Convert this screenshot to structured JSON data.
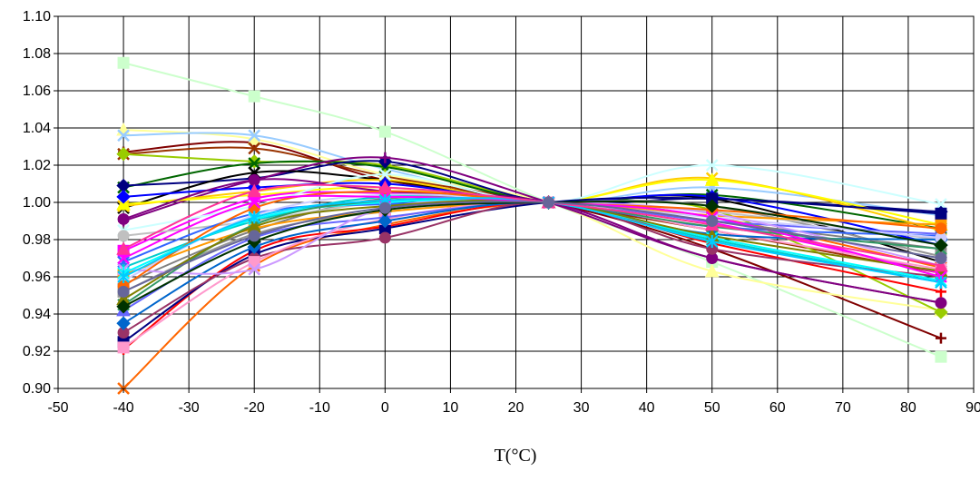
{
  "chart_data": {
    "type": "line",
    "title": "",
    "xlabel": "T(°C)",
    "ylabel": "",
    "xlim": [
      -50,
      90
    ],
    "ylim": [
      0.9,
      1.1
    ],
    "xticks": [
      "-50",
      "-40",
      "-30",
      "-20",
      "-10",
      "0",
      "10",
      "20",
      "30",
      "40",
      "50",
      "60",
      "70",
      "80",
      "90"
    ],
    "yticks": [
      "0.90",
      "0.92",
      "0.94",
      "0.96",
      "0.98",
      "1.00",
      "1.02",
      "1.04",
      "1.06",
      "1.08",
      "1.10"
    ],
    "grid": true,
    "legend": "none",
    "x": [
      -40,
      -20,
      0,
      25,
      50,
      85
    ],
    "series": [
      {
        "color": "#ccffcc",
        "marker": "square",
        "values": [
          1.075,
          1.057,
          1.038,
          1.0,
          0.968,
          0.917
        ]
      },
      {
        "color": "#ff6600",
        "marker": "x",
        "values": [
          0.9,
          0.966,
          0.988,
          1.0,
          0.992,
          0.965
        ]
      },
      {
        "color": "#800000",
        "marker": "plus",
        "values": [
          1.027,
          1.032,
          1.012,
          1.0,
          0.975,
          0.927
        ]
      },
      {
        "color": "#ffff99",
        "marker": "triangle",
        "values": [
          1.039,
          1.034,
          1.015,
          1.0,
          0.963,
          0.942
        ]
      },
      {
        "color": "#99ccff",
        "marker": "x",
        "values": [
          1.036,
          1.036,
          1.018,
          1.0,
          1.008,
          0.993
        ]
      },
      {
        "color": "#993300",
        "marker": "x",
        "values": [
          1.026,
          1.029,
          1.014,
          1.0,
          0.985,
          0.962
        ]
      },
      {
        "color": "#99cc00",
        "marker": "diamond",
        "values": [
          1.026,
          1.022,
          1.02,
          1.0,
          0.996,
          0.941
        ]
      },
      {
        "color": "#006600",
        "marker": "x",
        "values": [
          1.008,
          1.021,
          1.019,
          1.0,
          1.004,
          0.986
        ]
      },
      {
        "color": "#000080",
        "marker": "diamond",
        "values": [
          1.009,
          1.013,
          1.022,
          1.0,
          1.002,
          0.995
        ]
      },
      {
        "color": "#800080",
        "marker": "plus",
        "values": [
          0.99,
          1.012,
          1.024,
          1.0,
          0.97,
          0.946
        ]
      },
      {
        "color": "#000000",
        "marker": "x",
        "values": [
          0.997,
          1.016,
          1.012,
          1.0,
          1.002,
          0.968
        ]
      },
      {
        "color": "#ffcc00",
        "marker": "x",
        "values": [
          0.998,
          1.006,
          1.012,
          1.0,
          1.013,
          0.985
        ]
      },
      {
        "color": "#ffff00",
        "marker": "triangle",
        "values": [
          0.999,
          1.004,
          1.008,
          1.0,
          1.012,
          0.988
        ]
      },
      {
        "color": "#0000ff",
        "marker": "diamond",
        "values": [
          1.003,
          1.008,
          1.01,
          1.0,
          1.003,
          0.977
        ]
      },
      {
        "color": "#ff00ff",
        "marker": "square",
        "values": [
          0.974,
          1.002,
          1.005,
          1.0,
          0.989,
          0.962
        ]
      },
      {
        "color": "#800080",
        "marker": "circle",
        "values": [
          0.991,
          1.012,
          1.006,
          1.0,
          0.97,
          0.946
        ]
      },
      {
        "color": "#ccffff",
        "marker": "x",
        "values": [
          0.985,
          0.998,
          1.015,
          1.0,
          1.02,
          0.999
        ]
      },
      {
        "color": "#00cccc",
        "marker": "asterisk",
        "values": [
          0.965,
          0.99,
          1.003,
          1.0,
          0.98,
          0.957
        ]
      },
      {
        "color": "#808080",
        "marker": "circle",
        "values": [
          0.956,
          0.985,
          1.002,
          1.0,
          0.99,
          0.975
        ]
      },
      {
        "color": "#969696",
        "marker": "square",
        "values": [
          0.952,
          0.983,
          0.995,
          1.0,
          0.998,
          0.971
        ]
      },
      {
        "color": "#c0c0c0",
        "marker": "circle",
        "values": [
          0.982,
          0.99,
          1.0,
          1.0,
          0.995,
          0.98
        ]
      },
      {
        "color": "#ff9900",
        "marker": "square",
        "values": [
          0.961,
          0.986,
          0.995,
          1.0,
          0.993,
          0.988
        ]
      },
      {
        "color": "#3366ff",
        "marker": "x",
        "values": [
          0.968,
          0.994,
          0.999,
          1.0,
          0.987,
          0.982
        ]
      },
      {
        "color": "#ff0000",
        "marker": "plus",
        "values": [
          0.921,
          0.974,
          0.987,
          1.0,
          0.978,
          0.952
        ]
      },
      {
        "color": "#000080",
        "marker": "square",
        "values": [
          0.925,
          0.972,
          0.986,
          1.0,
          1.002,
          0.994
        ]
      },
      {
        "color": "#993366",
        "marker": "circle",
        "values": [
          0.93,
          0.97,
          0.981,
          1.0,
          0.975,
          0.96
        ]
      },
      {
        "color": "#ff99cc",
        "marker": "square",
        "values": [
          0.922,
          0.968,
          0.991,
          1.0,
          0.985,
          0.964
        ]
      },
      {
        "color": "#6666ff",
        "marker": "triangle",
        "values": [
          0.942,
          0.981,
          0.992,
          1.0,
          0.99,
          0.983
        ]
      },
      {
        "color": "#0066cc",
        "marker": "diamond",
        "values": [
          0.935,
          0.976,
          0.99,
          1.0,
          0.983,
          0.98
        ]
      },
      {
        "color": "#ccccff",
        "marker": "circle",
        "values": [
          0.958,
          0.993,
          1.004,
          1.0,
          0.992,
          0.981
        ]
      },
      {
        "color": "#cc99ff",
        "marker": "x",
        "values": [
          0.964,
          0.964,
          0.997,
          1.0,
          0.994,
          0.966
        ]
      },
      {
        "color": "#00ffff",
        "marker": "asterisk",
        "values": [
          0.962,
          0.991,
          1.0,
          1.0,
          0.981,
          0.958
        ]
      },
      {
        "color": "#339966",
        "marker": "x",
        "values": [
          0.945,
          0.988,
          1.001,
          1.0,
          0.987,
          0.975
        ]
      },
      {
        "color": "#ff6600",
        "marker": "circle",
        "values": [
          0.955,
          0.997,
          1.006,
          1.0,
          0.996,
          0.986
        ]
      },
      {
        "color": "#808000",
        "marker": "triangle",
        "values": [
          0.948,
          0.987,
          0.998,
          1.0,
          0.982,
          0.963
        ]
      },
      {
        "color": "#003300",
        "marker": "diamond",
        "values": [
          0.944,
          0.979,
          0.996,
          1.0,
          0.998,
          0.977
        ]
      },
      {
        "color": "#ff00ff",
        "marker": "x",
        "values": [
          0.97,
          1.0,
          1.003,
          1.0,
          0.992,
          0.96
        ]
      },
      {
        "color": "#00ccff",
        "marker": "asterisk",
        "values": [
          0.96,
          0.992,
          1.001,
          1.0,
          0.979,
          0.957
        ]
      },
      {
        "color": "#ff3399",
        "marker": "triangle",
        "values": [
          0.975,
          1.006,
          1.008,
          1.0,
          0.988,
          0.966
        ]
      },
      {
        "color": "#666699",
        "marker": "circle",
        "values": [
          0.952,
          0.982,
          0.997,
          1.0,
          0.99,
          0.97
        ]
      }
    ]
  }
}
